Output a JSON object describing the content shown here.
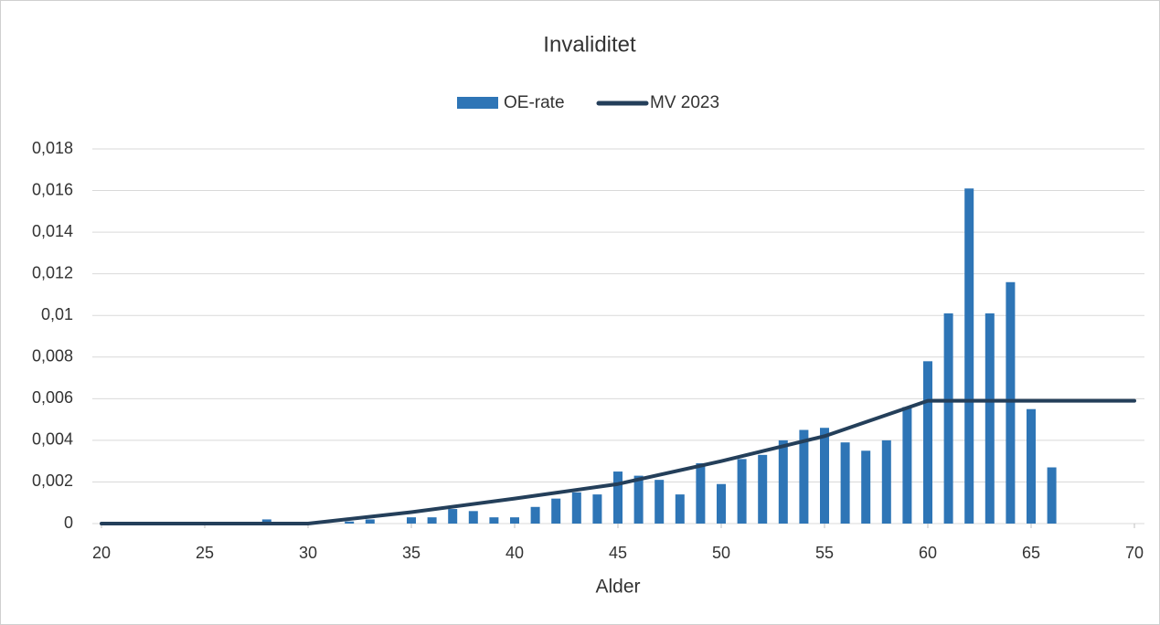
{
  "chart_data": {
    "type": "combo",
    "title": "Invaliditet",
    "x_label": "Alder",
    "legend": "top",
    "grid": true,
    "xlim": [
      20,
      70
    ],
    "xticks": [
      20,
      25,
      30,
      35,
      40,
      45,
      50,
      55,
      60,
      65,
      70
    ],
    "ylim": [
      0,
      0.018
    ],
    "yticks": [
      0,
      {
        "value": 0.002,
        "label": "0,002"
      },
      {
        "value": 0.004,
        "label": "0,004"
      },
      {
        "value": 0.006,
        "label": "0,006"
      },
      {
        "value": 0.008,
        "label": "0,008"
      },
      {
        "value": 0.01,
        "label": "0,01"
      },
      {
        "value": 0.012,
        "label": "0,012"
      },
      {
        "value": 0.014,
        "label": "0,014"
      },
      {
        "value": 0.016,
        "label": "0,016"
      },
      {
        "value": 0.018,
        "label": "0,018"
      }
    ],
    "series": [
      {
        "name": "OE-rate",
        "type": "bar",
        "color": "#2e75b6",
        "x": [
          28,
          32,
          33,
          35,
          36,
          37,
          38,
          39,
          40,
          41,
          42,
          43,
          44,
          45,
          46,
          47,
          48,
          49,
          50,
          51,
          52,
          53,
          54,
          55,
          56,
          57,
          58,
          59,
          60,
          61,
          62,
          63,
          64,
          65,
          66
        ],
        "values": [
          0.0002,
          0.0001,
          0.0002,
          0.0003,
          0.0003,
          0.0007,
          0.0006,
          0.0003,
          0.0003,
          0.0008,
          0.0012,
          0.0015,
          0.0014,
          0.0025,
          0.0023,
          0.0021,
          0.0014,
          0.0029,
          0.0019,
          0.0031,
          0.0033,
          0.004,
          0.0045,
          0.0046,
          0.0039,
          0.0035,
          0.004,
          0.0056,
          0.0078,
          0.0101,
          0.0161,
          0.0101,
          0.0116,
          0.0055,
          0.0027
        ]
      },
      {
        "name": "MV 2023",
        "type": "line",
        "color": "#243f5a",
        "x": [
          20,
          30,
          35,
          40,
          45,
          50,
          55,
          60,
          70
        ],
        "values": [
          0,
          0,
          0.00055,
          0.0012,
          0.0019,
          0.003,
          0.0042,
          0.0059,
          0.0059
        ]
      }
    ]
  }
}
